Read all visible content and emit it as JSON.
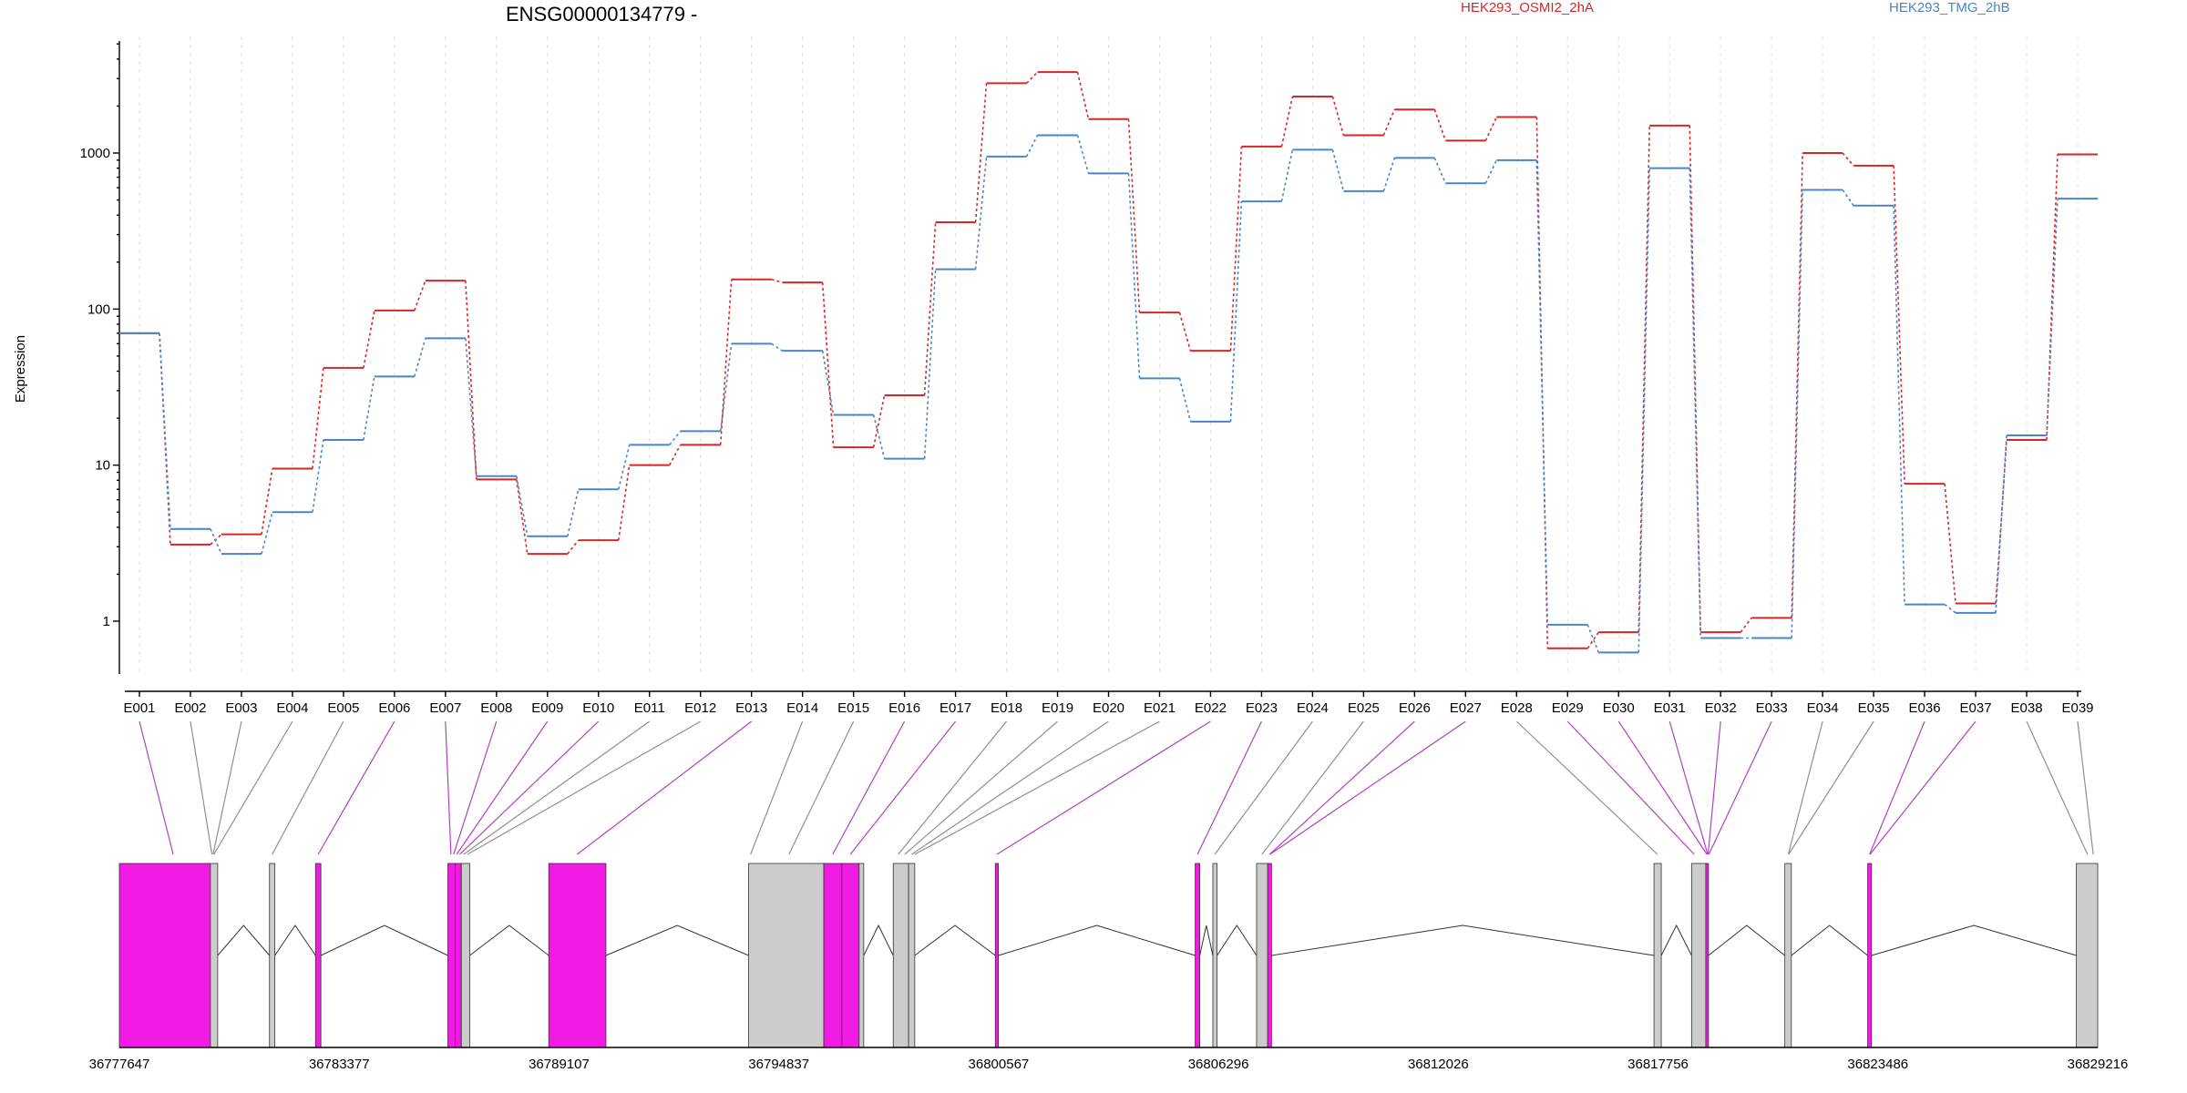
{
  "chart_data": {
    "type": "line",
    "title": "ENSG00000134779 -",
    "ylabel": "Expression",
    "yscale": "log",
    "ylim": [
      0.35,
      4500
    ],
    "yticks": [
      {
        "value": 1,
        "label": "1"
      },
      {
        "value": 10,
        "label": "10"
      },
      {
        "value": 100,
        "label": "100"
      },
      {
        "value": 1000,
        "label": "1000"
      }
    ],
    "exons": [
      "E001",
      "E002",
      "E003",
      "E004",
      "E005",
      "E006",
      "E007",
      "E008",
      "E009",
      "E010",
      "E011",
      "E012",
      "E013",
      "E014",
      "E015",
      "E016",
      "E017",
      "E018",
      "E019",
      "E020",
      "E021",
      "E022",
      "E023",
      "E024",
      "E025",
      "E026",
      "E027",
      "E028",
      "E029",
      "E030",
      "E031",
      "E032",
      "E033",
      "E034",
      "E035",
      "E036",
      "E037",
      "E038",
      "E039"
    ],
    "legend_position": "top",
    "series": [
      {
        "name": "HEK293_OSMI2_2hA",
        "color": "#d62728",
        "values": [
          70,
          3.1,
          3.6,
          9.5,
          42,
          98,
          152,
          8.1,
          2.7,
          3.3,
          10,
          13.5,
          155,
          148,
          13,
          28,
          360,
          2800,
          3300,
          1650,
          95,
          54,
          1100,
          2300,
          1300,
          1900,
          1200,
          1700,
          0.67,
          0.85,
          1500,
          0.85,
          1.05,
          1000,
          830,
          7.6,
          1.3,
          14.5,
          980
        ]
      },
      {
        "name": "HEK293_TMG_2hB",
        "color": "#4a86c5",
        "values": [
          70,
          3.9,
          2.7,
          5,
          14.5,
          37,
          65,
          8.5,
          3.5,
          7,
          13.5,
          16.5,
          60,
          54,
          21,
          11,
          180,
          950,
          1300,
          740,
          36,
          19,
          490,
          1050,
          570,
          930,
          640,
          900,
          0.95,
          0.63,
          800,
          0.78,
          0.78,
          580,
          460,
          1.28,
          1.13,
          15.5,
          510
        ]
      }
    ],
    "genomic_ticks": [
      "36777647",
      "36783377",
      "36789107",
      "36794837",
      "36800567",
      "36806296",
      "36812026",
      "36817756",
      "36823486",
      "36829216"
    ],
    "genomic_range": [
      36777647,
      36829216
    ]
  }
}
